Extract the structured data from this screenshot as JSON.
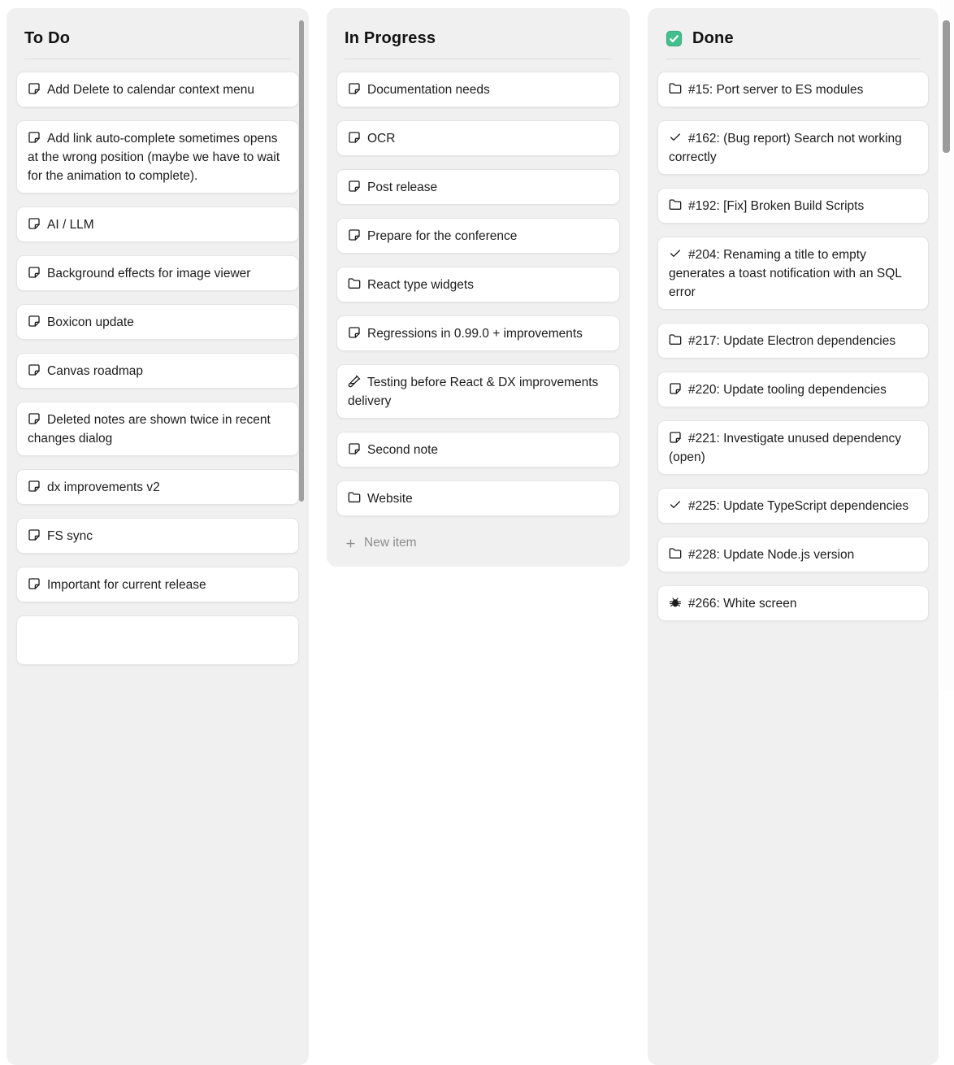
{
  "board": {
    "columns": [
      {
        "title": "To Do",
        "scrollbar_visible": true,
        "partial_card_visible": true,
        "cards": [
          {
            "icon": "sticky-note-icon",
            "text": "Add Delete to calendar context menu"
          },
          {
            "icon": "sticky-note-icon",
            "text": "Add link auto-complete sometimes opens at the wrong position (maybe we have to wait for the animation to complete)."
          },
          {
            "icon": "sticky-note-icon",
            "text": "AI / LLM"
          },
          {
            "icon": "sticky-note-icon",
            "text": "Background effects for image viewer"
          },
          {
            "icon": "sticky-note-icon",
            "text": "Boxicon update"
          },
          {
            "icon": "sticky-note-icon",
            "text": "Canvas roadmap"
          },
          {
            "icon": "sticky-note-icon",
            "text": "Deleted notes are shown twice in recent changes dialog"
          },
          {
            "icon": "sticky-note-icon",
            "text": "dx improvements v2"
          },
          {
            "icon": "sticky-note-icon",
            "text": "FS sync"
          },
          {
            "icon": "sticky-note-icon",
            "text": "Important for current release"
          }
        ]
      },
      {
        "title": "In Progress",
        "new_item_label": "New item",
        "cards": [
          {
            "icon": "sticky-note-icon",
            "text": "Documentation needs"
          },
          {
            "icon": "sticky-note-icon",
            "text": "OCR"
          },
          {
            "icon": "sticky-note-icon",
            "text": "Post release"
          },
          {
            "icon": "sticky-note-icon",
            "text": "Prepare for the conference"
          },
          {
            "icon": "folder-icon",
            "text": "React type widgets"
          },
          {
            "icon": "sticky-note-icon",
            "text": "Regressions in 0.99.0 + improvements"
          },
          {
            "icon": "test-tube-icon",
            "text": "Testing before React & DX improvements delivery"
          },
          {
            "icon": "sticky-note-icon",
            "text": "Second note"
          },
          {
            "icon": "folder-icon",
            "text": "Website"
          }
        ]
      },
      {
        "title": "Done",
        "title_icon": "checked-checkbox-icon",
        "cards": [
          {
            "icon": "folder-icon",
            "text": "#15: Port server to ES modules"
          },
          {
            "icon": "check-icon",
            "text": "#162: (Bug report) Search not working correctly"
          },
          {
            "icon": "folder-icon",
            "text": "#192: [Fix] Broken Build Scripts"
          },
          {
            "icon": "check-icon",
            "text": "#204: Renaming a title to empty generates a toast notification with an SQL error"
          },
          {
            "icon": "folder-icon",
            "text": "#217: Update Electron dependencies"
          },
          {
            "icon": "sticky-note-icon",
            "text": "#220: Update tooling dependencies"
          },
          {
            "icon": "sticky-note-icon",
            "text": "#221: Investigate unused dependency (open)"
          },
          {
            "icon": "check-icon",
            "text": "#225: Update TypeScript dependencies"
          },
          {
            "icon": "folder-icon",
            "text": "#228: Update Node.js version"
          },
          {
            "icon": "bug-icon",
            "text": "#266: White screen"
          }
        ]
      }
    ]
  },
  "colors": {
    "done_checkbox_green": "#43bf8c",
    "done_checkbox_border": "#35aa7b",
    "column_background": "#f0f0f1",
    "card_background": "#ffffff",
    "scrollbar_thumb": "#9b9b9b"
  }
}
